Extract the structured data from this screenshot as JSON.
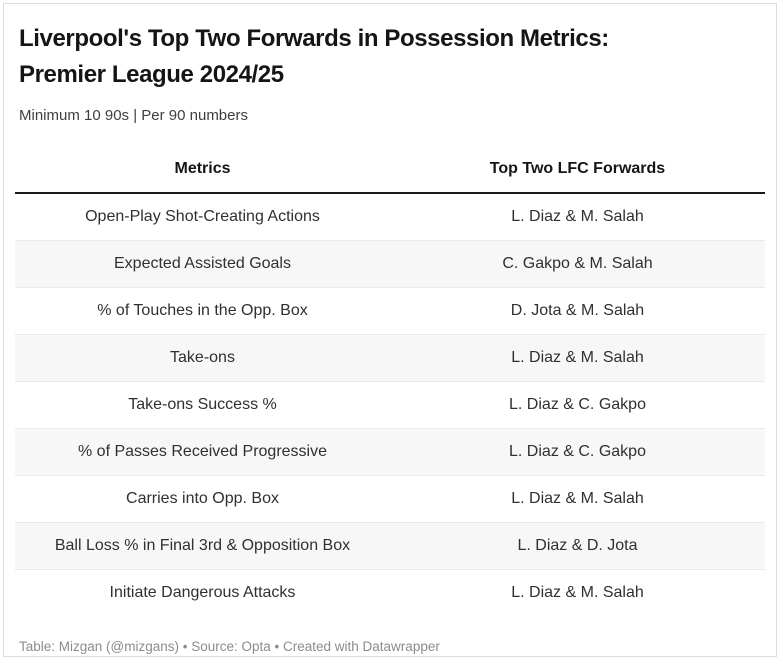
{
  "header": {
    "title_line1": "Liverpool's Top Two Forwards in Possession Metrics:",
    "title_line2": "Premier League 2024/25",
    "subtitle": "Minimum 10 90s | Per 90 numbers"
  },
  "footer": {
    "text": "Table: Mizgan (@mizgans) • Source: Opta • Created with Datawrapper"
  },
  "colors": {
    "title_text": "#151515",
    "subtitle_text": "#3f3f3f",
    "body_text": "#303030",
    "zebra_row_bg": "#f7f7f7",
    "row_separator": "#ebebeb",
    "header_rule": "#1a1a1a",
    "footer_text": "#8c8c8c",
    "card_border": "#dcdcdc",
    "card_bg": "#ffffff"
  },
  "chart_data": {
    "type": "table",
    "title": "Liverpool's Top Two Forwards in Possession Metrics: Premier League 2024/25",
    "subtitle": "Minimum 10 90s | Per 90 numbers",
    "columns": [
      "Metrics",
      "Top Two LFC Forwards"
    ],
    "rows": [
      [
        "Open-Play Shot-Creating Actions",
        "L. Diaz & M. Salah"
      ],
      [
        "Expected Assisted Goals",
        "C. Gakpo & M. Salah"
      ],
      [
        "% of Touches in the Opp. Box",
        "D. Jota & M. Salah"
      ],
      [
        "Take-ons",
        "L. Diaz & M. Salah"
      ],
      [
        "Take-ons Success %",
        "L. Diaz & C. Gakpo"
      ],
      [
        "% of Passes Received Progressive",
        "L. Diaz & C. Gakpo"
      ],
      [
        "Carries into Opp. Box",
        "L. Diaz & M. Salah"
      ],
      [
        "Ball Loss % in Final 3rd & Opposition Box",
        "L. Diaz & D. Jota"
      ],
      [
        "Initiate Dangerous Attacks",
        "L. Diaz & M. Salah"
      ]
    ],
    "layout": {
      "zebra_striping": true,
      "column_alignment": [
        "center",
        "center"
      ],
      "footer": "Table: Mizgan (@mizgans) • Source: Opta • Created with Datawrapper"
    }
  }
}
